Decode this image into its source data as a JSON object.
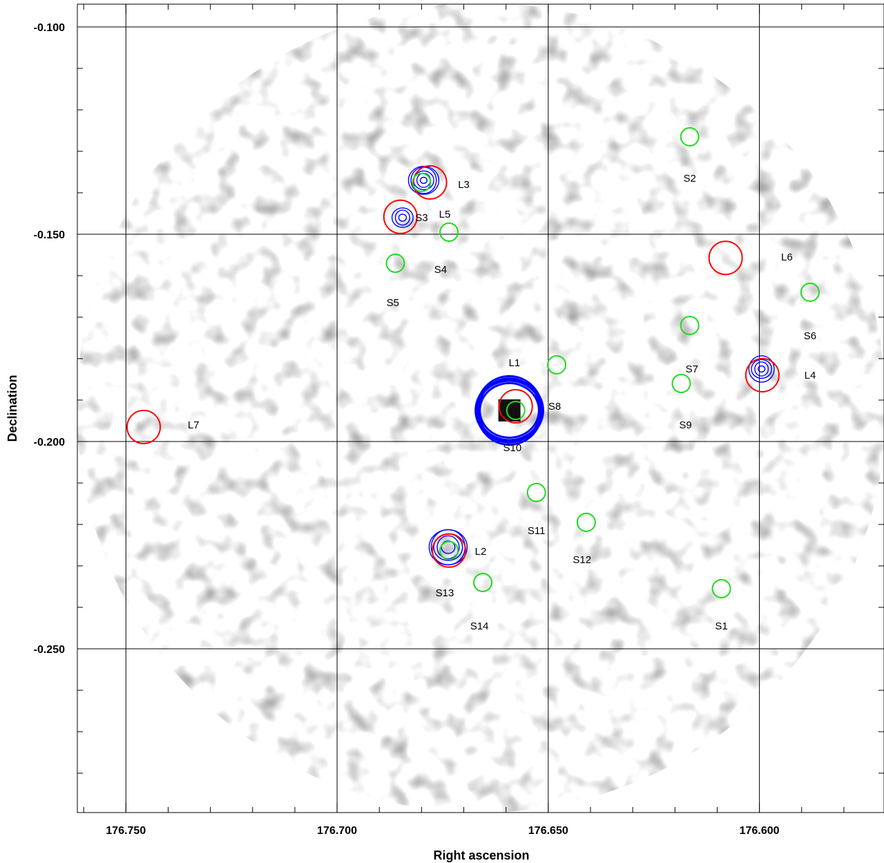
{
  "chart_data": {
    "type": "scatter",
    "title": "",
    "xlabel": "Right ascension",
    "ylabel": "Declination",
    "xlim": [
      176.7615,
      176.5705
    ],
    "ylim": [
      -0.2895,
      -0.0945
    ],
    "x_inverted": true,
    "x_ticks": [
      {
        "value": 176.75,
        "label": "176.750"
      },
      {
        "value": 176.7,
        "label": "176.700"
      },
      {
        "value": 176.65,
        "label": "176.650"
      },
      {
        "value": 176.6,
        "label": "176.600"
      }
    ],
    "y_ticks": [
      {
        "value": -0.1,
        "label": "-0.100"
      },
      {
        "value": -0.15,
        "label": "-0.150"
      },
      {
        "value": -0.2,
        "label": "-0.200"
      },
      {
        "value": -0.25,
        "label": "-0.250"
      }
    ],
    "grid": true,
    "background": "grayscale smoothed noise map in circular field",
    "series": [
      {
        "name": "",
        "marker": "circle",
        "color": "#ff0000",
        "points": [
          {
            "label": "L1",
            "x": 176.6577,
            "y": -0.1915
          },
          {
            "label": "L2",
            "x": 176.6735,
            "y": -0.2263
          },
          {
            "label": "L3",
            "x": 176.678,
            "y": -0.1375
          },
          {
            "label": "L4",
            "x": 176.5993,
            "y": -0.184
          },
          {
            "label": "L5",
            "x": 176.685,
            "y": -0.1458
          },
          {
            "label": "L6",
            "x": 176.608,
            "y": -0.1557
          },
          {
            "label": "L7",
            "x": 176.7458,
            "y": -0.1965
          }
        ]
      },
      {
        "name": "",
        "marker": "circle",
        "color": "#1edc1e",
        "points": [
          {
            "label": "S1",
            "x": 176.609,
            "y": -0.2355
          },
          {
            "label": "S2",
            "x": 176.6165,
            "y": -0.1265
          },
          {
            "label": "S3",
            "x": 176.68,
            "y": -0.1375
          },
          {
            "label": "S4",
            "x": 176.6735,
            "y": -0.1495
          },
          {
            "label": "S5",
            "x": 176.6862,
            "y": -0.157
          },
          {
            "label": "S6",
            "x": 176.588,
            "y": -0.164
          },
          {
            "label": "S7",
            "x": 176.6165,
            "y": -0.172
          },
          {
            "label": "S8",
            "x": 176.648,
            "y": -0.1815
          },
          {
            "label": "S9",
            "x": 176.6185,
            "y": -0.186
          },
          {
            "label": "S10",
            "x": 176.6577,
            "y": -0.1925
          },
          {
            "label": "S11",
            "x": 176.6528,
            "y": -0.2123
          },
          {
            "label": "S12",
            "x": 176.641,
            "y": -0.2195
          },
          {
            "label": "S13",
            "x": 176.6735,
            "y": -0.2263
          },
          {
            "label": "S14",
            "x": 176.6655,
            "y": -0.234
          }
        ]
      }
    ],
    "labels": [
      {
        "text": "L1",
        "x": 176.658,
        "y": -0.181
      },
      {
        "text": "L2",
        "x": 176.666,
        "y": -0.2265
      },
      {
        "text": "L3",
        "x": 176.67,
        "y": -0.138
      },
      {
        "text": "L4",
        "x": 176.588,
        "y": -0.184
      },
      {
        "text": "L5",
        "x": 176.6745,
        "y": -0.1452
      },
      {
        "text": "L6",
        "x": 176.5935,
        "y": -0.1555
      },
      {
        "text": "L7",
        "x": 176.734,
        "y": -0.196
      },
      {
        "text": "S1",
        "x": 176.609,
        "y": -0.2445
      },
      {
        "text": "S2",
        "x": 176.6165,
        "y": -0.1365
      },
      {
        "text": "S3",
        "x": 176.68,
        "y": -0.146
      },
      {
        "text": "S4",
        "x": 176.6755,
        "y": -0.1585
      },
      {
        "text": "S5",
        "x": 176.6868,
        "y": -0.1665
      },
      {
        "text": "S6",
        "x": 176.588,
        "y": -0.1745
      },
      {
        "text": "S7",
        "x": 176.616,
        "y": -0.1825
      },
      {
        "text": "S8",
        "x": 176.6485,
        "y": -0.1915
      },
      {
        "text": "S9",
        "x": 176.6175,
        "y": -0.196
      },
      {
        "text": "S10",
        "x": 176.6585,
        "y": -0.2015
      },
      {
        "text": "S11",
        "x": 176.6528,
        "y": -0.2215
      },
      {
        "text": "S12",
        "x": 176.642,
        "y": -0.2285
      },
      {
        "text": "S13",
        "x": 176.6745,
        "y": -0.2365
      },
      {
        "text": "S14",
        "x": 176.6663,
        "y": -0.2445
      }
    ],
    "contours": {
      "color": "#0000ff",
      "sources": [
        {
          "name": "L1",
          "x": 176.6592,
          "y": -0.1925,
          "rings": [
            0.007,
            0.0073,
            0.0076,
            0.0078,
            0.008
          ]
        },
        {
          "name": "L2",
          "x": 176.6737,
          "y": -0.2255,
          "rings": [
            0.0016,
            0.0026,
            0.0034,
            0.004,
            0.0045
          ]
        },
        {
          "name": "L3",
          "x": 176.6795,
          "y": -0.137,
          "rings": [
            0.0008,
            0.0016,
            0.0024,
            0.003,
            0.0036
          ]
        },
        {
          "name": "S3",
          "x": 176.6845,
          "y": -0.146,
          "rings": [
            0.0009,
            0.0017,
            0.0025
          ]
        },
        {
          "name": "L4",
          "x": 176.5995,
          "y": -0.1825,
          "rings": [
            0.0008,
            0.0016,
            0.0024,
            0.003
          ]
        }
      ]
    }
  }
}
